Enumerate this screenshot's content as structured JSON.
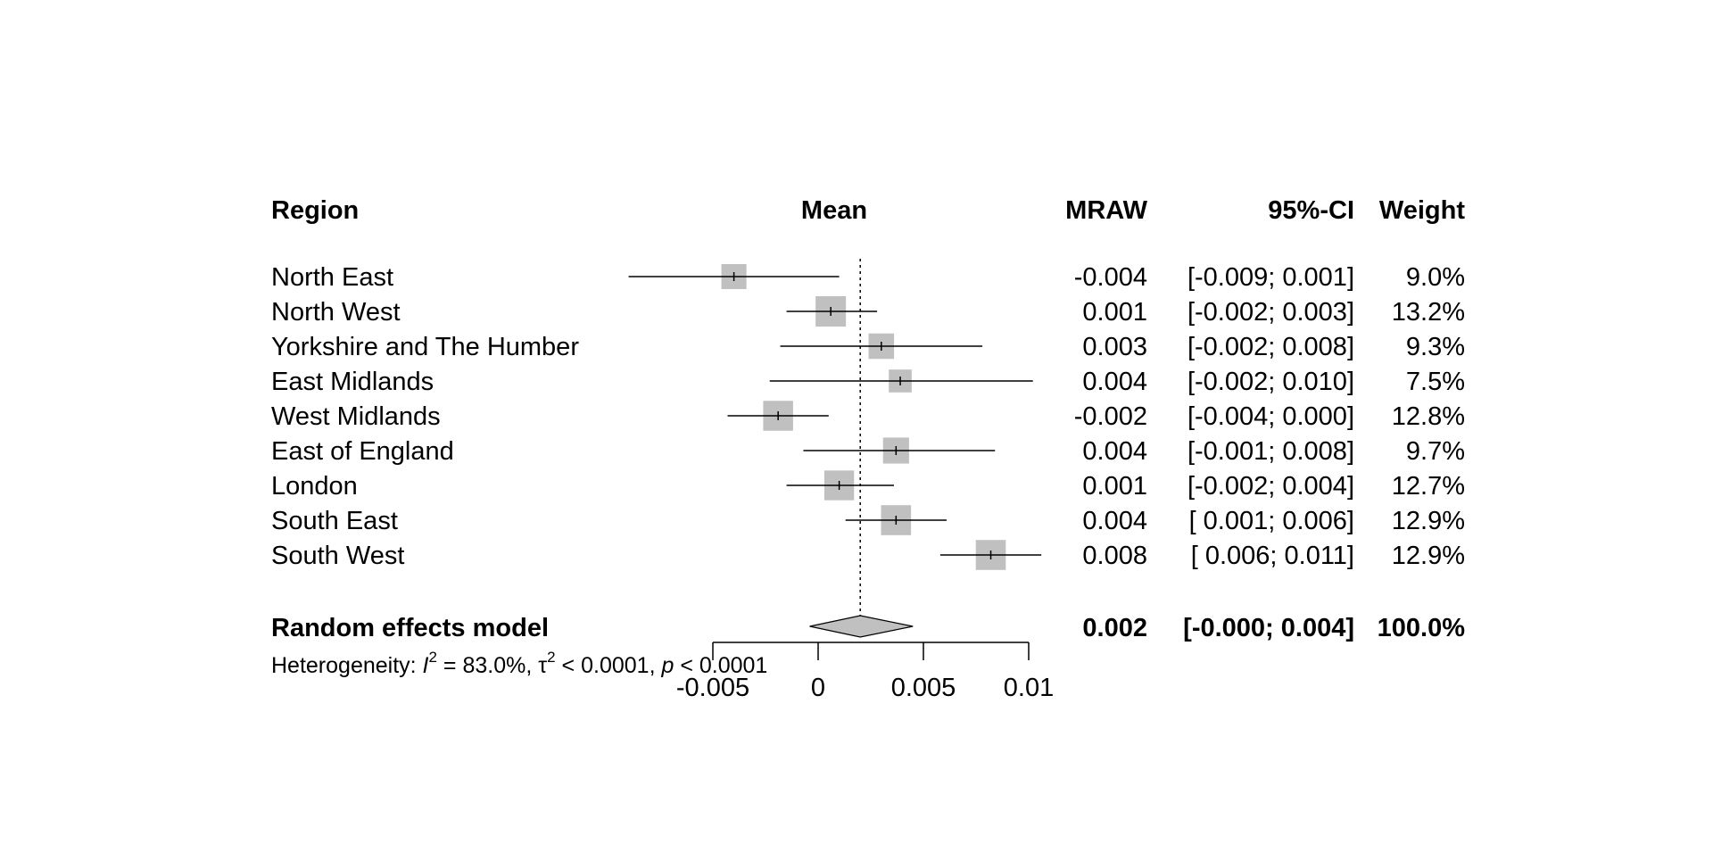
{
  "chart_data": {
    "type": "forest",
    "headers": {
      "study": "Region",
      "plot": "Mean",
      "effect": "MRAW",
      "ci": "95%-CI",
      "weight": "Weight"
    },
    "studies": [
      {
        "label": "North East",
        "mean": -0.004,
        "lower": -0.009,
        "upper": 0.001,
        "effect_text": "-0.004",
        "ci_text": "[-0.009; 0.001]",
        "weight_text": "9.0%",
        "weight": 9.0
      },
      {
        "label": "North West",
        "mean": 0.0006,
        "lower": -0.0015,
        "upper": 0.0028,
        "effect_text": "0.001",
        "ci_text": "[-0.002; 0.003]",
        "weight_text": "13.2%",
        "weight": 13.2
      },
      {
        "label": "Yorkshire and The Humber",
        "mean": 0.003,
        "lower": -0.0018,
        "upper": 0.0078,
        "effect_text": "0.003",
        "ci_text": "[-0.002; 0.008]",
        "weight_text": "9.3%",
        "weight": 9.3
      },
      {
        "label": "East Midlands",
        "mean": 0.0039,
        "lower": -0.0023,
        "upper": 0.0102,
        "effect_text": "0.004",
        "ci_text": "[-0.002; 0.010]",
        "weight_text": "7.5%",
        "weight": 7.5
      },
      {
        "label": "West Midlands",
        "mean": -0.0019,
        "lower": -0.0043,
        "upper": 0.0005,
        "effect_text": "-0.002",
        "ci_text": "[-0.004; 0.000]",
        "weight_text": "12.8%",
        "weight": 12.8
      },
      {
        "label": "East of England",
        "mean": 0.0037,
        "lower": -0.0007,
        "upper": 0.0084,
        "effect_text": "0.004",
        "ci_text": "[-0.001; 0.008]",
        "weight_text": "9.7%",
        "weight": 9.7
      },
      {
        "label": "London",
        "mean": 0.001,
        "lower": -0.0015,
        "upper": 0.0036,
        "effect_text": "0.001",
        "ci_text": "[-0.002; 0.004]",
        "weight_text": "12.7%",
        "weight": 12.7
      },
      {
        "label": "South East",
        "mean": 0.0037,
        "lower": 0.0013,
        "upper": 0.0061,
        "effect_text": "0.004",
        "ci_text": "[ 0.001; 0.006]",
        "weight_text": "12.9%",
        "weight": 12.9
      },
      {
        "label": "South West",
        "mean": 0.0082,
        "lower": 0.0058,
        "upper": 0.0106,
        "effect_text": "0.008",
        "ci_text": "[ 0.006; 0.011]",
        "weight_text": "12.9%",
        "weight": 12.9
      }
    ],
    "summary": {
      "label": "Random effects model",
      "mean": 0.002,
      "lower": -0.0004,
      "upper": 0.0045,
      "effect_text": "0.002",
      "ci_text": "[-0.000; 0.004]",
      "weight_text": "100.0%"
    },
    "heterogeneity": {
      "prefix": "Heterogeneity: ",
      "i2_symbol": "I",
      "i2_value": " = 83.0%, ",
      "tau_symbol": "τ",
      "tau_value": " < 0.0001, ",
      "p_symbol": "p",
      "p_value": " < 0.0001"
    },
    "x_axis": {
      "ticks": [
        -0.005,
        0,
        0.005,
        0.01
      ],
      "tick_labels": [
        "-0.005",
        "0",
        "0.005",
        "0.01"
      ],
      "range": [
        -0.005,
        0.01
      ]
    },
    "reference_line": 0.002,
    "colors": {
      "square": "#c0c0c0",
      "diamond": "#c0c0c0",
      "line": "#000000"
    }
  }
}
